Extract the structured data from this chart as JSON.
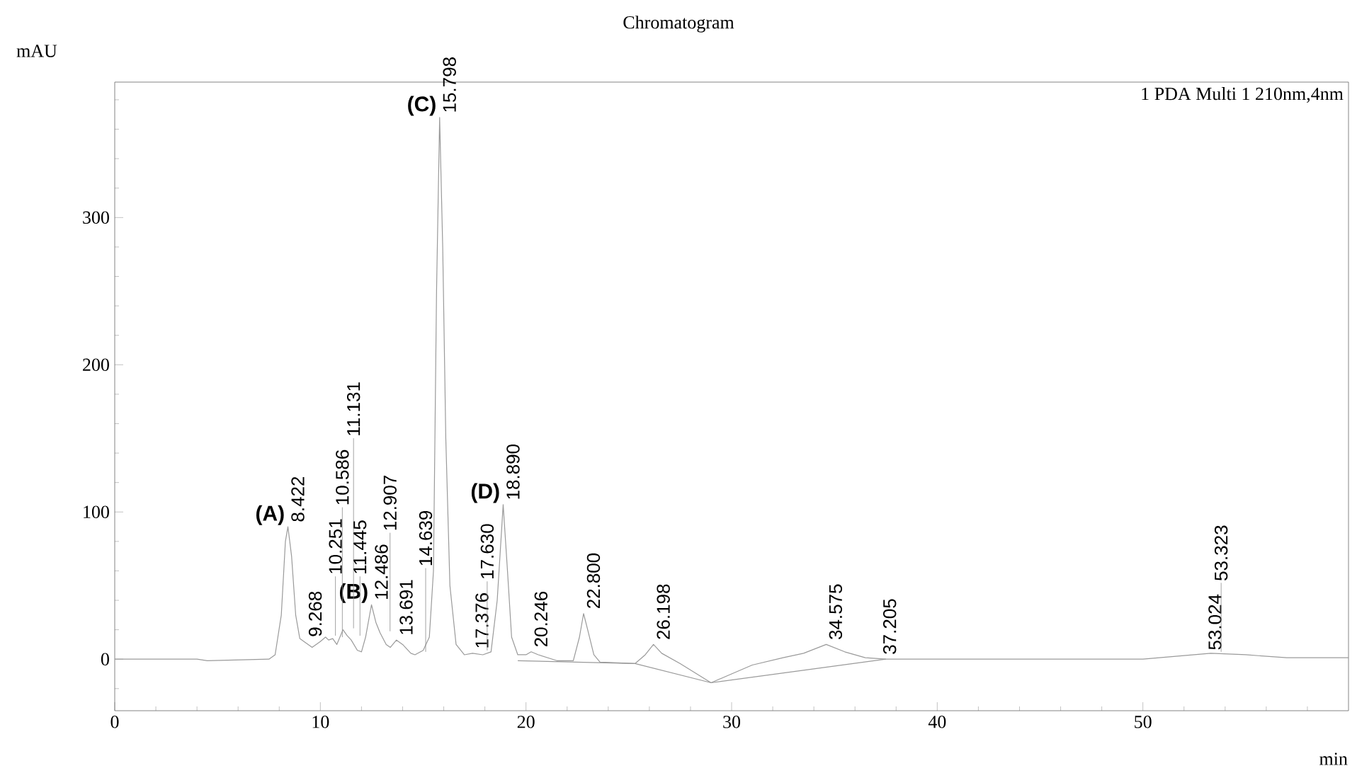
{
  "chart_data": {
    "type": "line",
    "title": "Chromatogram",
    "xlabel": "min",
    "ylabel": "mAU",
    "xlim": [
      0,
      60
    ],
    "ylim": [
      -35,
      392
    ],
    "xticks": [
      0,
      {
        "value": 2,
        "label": null
      },
      {
        "value": 4,
        "label": null
      },
      {
        "value": 6,
        "label": null
      },
      {
        "value": 8,
        "label": null
      },
      10,
      {
        "value": 12,
        "label": null
      },
      {
        "value": 14,
        "label": null
      },
      {
        "value": 16,
        "label": null
      },
      {
        "value": 18,
        "label": null
      },
      20,
      {
        "value": 22,
        "label": null
      },
      {
        "value": 24,
        "label": null
      },
      {
        "value": 26,
        "label": null
      },
      {
        "value": 28,
        "label": null
      },
      30,
      {
        "value": 32,
        "label": null
      },
      {
        "value": 34,
        "label": null
      },
      {
        "value": 36,
        "label": null
      },
      {
        "value": 38,
        "label": null
      },
      40,
      {
        "value": 42,
        "label": null
      },
      {
        "value": 44,
        "label": null
      },
      {
        "value": 46,
        "label": null
      },
      {
        "value": 48,
        "label": null
      },
      50,
      {
        "value": 52,
        "label": null
      },
      {
        "value": 54,
        "label": null
      },
      {
        "value": 56,
        "label": null
      },
      {
        "value": 58,
        "label": null
      }
    ],
    "yticks": [
      {
        "value": -20,
        "label": null
      },
      0,
      {
        "value": 20,
        "label": null
      },
      {
        "value": 40,
        "label": null
      },
      {
        "value": 60,
        "label": null
      },
      {
        "value": 80,
        "label": null
      },
      100,
      {
        "value": 120,
        "label": null
      },
      {
        "value": 140,
        "label": null
      },
      {
        "value": 160,
        "label": null
      },
      {
        "value": 180,
        "label": null
      },
      200,
      {
        "value": 220,
        "label": null
      },
      {
        "value": 240,
        "label": null
      },
      {
        "value": 260,
        "label": null
      },
      {
        "value": 280,
        "label": null
      },
      300,
      {
        "value": 320,
        "label": null
      },
      {
        "value": 340,
        "label": null
      },
      {
        "value": 360,
        "label": null
      },
      {
        "value": 380,
        "label": null
      }
    ],
    "grid": false,
    "marker": "none",
    "line_style": "solid",
    "series": [
      {
        "color": "#9a9a9a",
        "x": [
          0,
          4,
          4.5,
          7.5,
          7.8,
          8.1,
          8.3,
          8.422,
          8.6,
          8.8,
          9.0,
          9.2,
          9.6,
          10.0,
          10.25,
          10.4,
          10.6,
          10.8,
          11.1,
          11.3,
          11.5,
          11.8,
          12.0,
          12.2,
          12.486,
          12.7,
          12.9,
          13.2,
          13.4,
          13.7,
          14.0,
          14.4,
          14.6,
          15.0,
          15.3,
          15.5,
          15.65,
          15.8,
          15.95,
          16.1,
          16.3,
          16.6,
          17.0,
          17.4,
          17.9,
          18.3,
          18.6,
          18.89,
          19.1,
          19.3,
          19.6,
          20.0,
          20.25,
          20.6,
          21.5,
          22.3,
          22.6,
          22.8,
          23.0,
          23.3,
          23.6,
          25.3,
          25.8,
          26.2,
          26.6,
          27.5,
          29.0,
          30.0,
          31.0,
          32.5,
          33.5,
          34.6,
          35.5,
          36.5,
          37.5,
          50.0,
          52.5,
          53.3,
          55,
          57,
          60
        ],
        "values": [
          0,
          0,
          -1,
          0,
          3,
          30,
          80,
          90,
          70,
          30,
          14,
          12,
          8,
          12,
          15,
          13,
          14,
          10,
          20,
          16,
          13,
          6,
          5,
          15,
          37,
          25,
          18,
          10,
          8,
          13,
          10,
          4,
          3,
          6,
          15,
          60,
          250,
          368,
          280,
          150,
          50,
          10,
          3,
          4,
          3,
          5,
          40,
          105,
          60,
          15,
          3,
          3,
          5,
          3,
          -1,
          -1,
          15,
          31,
          20,
          3,
          -2,
          -3,
          3,
          10,
          4,
          -3,
          -16,
          -10,
          -4,
          1,
          4,
          10,
          5,
          1,
          0,
          0,
          3,
          4,
          3,
          1,
          1
        ]
      },
      {
        "color": "#9a9a9a",
        "x": [
          19.6,
          25.3,
          29.0,
          37.5
        ],
        "values": [
          -1,
          -3,
          -16,
          0
        ]
      }
    ],
    "annotations": [
      {
        "text": "(A)",
        "x": 8.422,
        "y": 90
      },
      {
        "text": "(B)",
        "x": 12.486,
        "y": 37
      },
      {
        "text": "(C)",
        "x": 15.798,
        "y": 368
      },
      {
        "text": "(D)",
        "x": 18.89,
        "y": 105
      },
      {
        "text": "8.422",
        "x": 8.422,
        "y": 90
      },
      {
        "text": "9.268",
        "x": 9.268,
        "y": 12
      },
      {
        "text": "10.251",
        "x": 10.251,
        "y": 15
      },
      {
        "text": "10.586",
        "x": 10.586,
        "y": 14
      },
      {
        "text": "11.131",
        "x": 11.131,
        "y": 20
      },
      {
        "text": "11.445",
        "x": 11.445,
        "y": 15
      },
      {
        "text": "12.486",
        "x": 12.486,
        "y": 37
      },
      {
        "text": "12.907",
        "x": 12.907,
        "y": 18
      },
      {
        "text": "13.691",
        "x": 13.691,
        "y": 13
      },
      {
        "text": "14.639",
        "x": 14.639,
        "y": 4
      },
      {
        "text": "15.798",
        "x": 15.798,
        "y": 368
      },
      {
        "text": "17.376",
        "x": 17.376,
        "y": 4
      },
      {
        "text": "17.630",
        "x": 17.63,
        "y": 5
      },
      {
        "text": "18.890",
        "x": 18.89,
        "y": 105
      },
      {
        "text": "20.246",
        "x": 20.246,
        "y": 5
      },
      {
        "text": "22.800",
        "x": 22.8,
        "y": 31
      },
      {
        "text": "26.198",
        "x": 26.198,
        "y": 10
      },
      {
        "text": "34.575",
        "x": 34.575,
        "y": 10
      },
      {
        "text": "37.205",
        "x": 37.205,
        "y": 0
      },
      {
        "text": "53.024",
        "x": 53.024,
        "y": 3
      },
      {
        "text": "53.323",
        "x": 53.323,
        "y": 4
      },
      "1 PDA Multi 1 210nm,4nm"
    ]
  }
}
